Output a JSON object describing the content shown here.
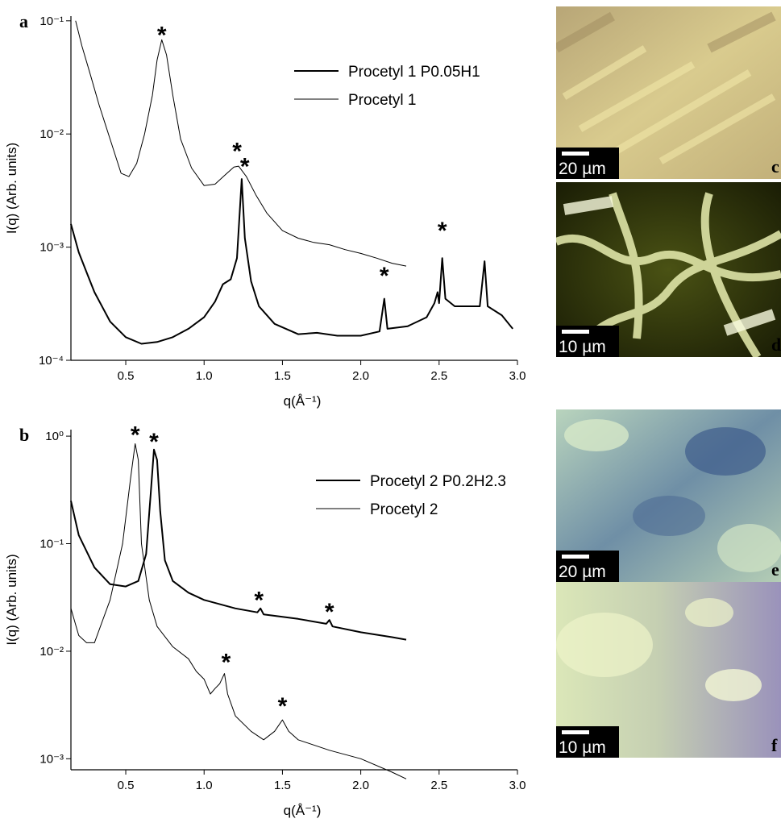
{
  "chart_data": [
    {
      "type": "line",
      "panel_label": "a",
      "xlabel": "q(Å⁻¹)",
      "ylabel": "I(q) (Arb. units)",
      "log_y": true,
      "xlim": [
        0.15,
        3.0
      ],
      "ylim": [
        0.0001,
        0.11
      ],
      "xticks": [
        0.5,
        {
          "value": 1,
          "label": "1.0"
        },
        1.5,
        {
          "value": 2,
          "label": "2.0"
        },
        2.5,
        {
          "value": 3,
          "label": "3.0"
        }
      ],
      "yticks": [
        {
          "value": 0.0001,
          "label": "10⁻⁴"
        },
        {
          "value": 0.001,
          "label": "10⁻³"
        },
        {
          "value": 0.01,
          "label": "10⁻²"
        },
        {
          "value": 0.1,
          "label": "10⁻¹"
        }
      ],
      "series": [
        {
          "name": "Procetyl 1 P0.05H1",
          "color": "#000000",
          "linewidth": 2,
          "x": [
            0.15,
            0.2,
            0.25,
            0.3,
            0.4,
            0.5,
            0.6,
            0.7,
            0.8,
            0.9,
            1.0,
            1.07,
            1.12,
            1.17,
            1.21,
            1.24,
            1.26,
            1.3,
            1.35,
            1.45,
            1.6,
            1.72,
            1.85,
            2.0,
            2.12,
            2.15,
            2.17,
            2.3,
            2.42,
            2.47,
            2.49,
            2.5,
            2.52,
            2.54,
            2.6,
            2.76,
            2.79,
            2.81,
            2.9,
            2.97
          ],
          "values": [
            0.0016,
            0.0009,
            0.0006,
            0.0004,
            0.00022,
            0.00016,
            0.00014,
            0.000145,
            0.00016,
            0.00019,
            0.00024,
            0.00033,
            0.00047,
            0.00052,
            0.0008,
            0.004,
            0.0012,
            0.0005,
            0.0003,
            0.00021,
            0.00017,
            0.000175,
            0.000165,
            0.000165,
            0.00018,
            0.00035,
            0.00019,
            0.0002,
            0.00024,
            0.00032,
            0.0004,
            0.00032,
            0.0008,
            0.00035,
            0.0003,
            0.0003,
            0.00075,
            0.0003,
            0.00025,
            0.00019
          ]
        },
        {
          "name": "Procetyl 1",
          "color": "#000000",
          "linewidth": 1,
          "x": [
            0.18,
            0.22,
            0.27,
            0.33,
            0.4,
            0.47,
            0.52,
            0.57,
            0.62,
            0.67,
            0.7,
            0.73,
            0.76,
            0.8,
            0.85,
            0.92,
            1.0,
            1.07,
            1.13,
            1.19,
            1.22,
            1.27,
            1.33,
            1.4,
            1.5,
            1.6,
            1.7,
            1.8,
            1.9,
            2.0,
            2.1,
            2.2,
            2.29
          ],
          "values": [
            0.1,
            0.06,
            0.035,
            0.018,
            0.009,
            0.0045,
            0.0042,
            0.0055,
            0.01,
            0.022,
            0.045,
            0.068,
            0.05,
            0.022,
            0.009,
            0.005,
            0.0035,
            0.0036,
            0.0043,
            0.0051,
            0.0052,
            0.0042,
            0.0029,
            0.002,
            0.0014,
            0.0012,
            0.0011,
            0.00105,
            0.00095,
            0.00088,
            0.0008,
            0.00072,
            0.00068
          ]
        }
      ],
      "annotations": [
        {
          "text": "*",
          "x": 0.73,
          "y": 0.08
        },
        {
          "text": "*",
          "x": 1.21,
          "y": 0.0075
        },
        {
          "text": "*",
          "x": 1.26,
          "y": 0.0055
        },
        {
          "text": "*",
          "x": 2.15,
          "y": 0.0006
        },
        {
          "text": "*",
          "x": 2.52,
          "y": 0.0015
        }
      ]
    },
    {
      "type": "line",
      "panel_label": "b",
      "xlabel": "q(Å⁻¹)",
      "ylabel": "I(q) (Arb. units)",
      "log_y": true,
      "xlim": [
        0.15,
        3.0
      ],
      "ylim": [
        0.00079,
        1.15
      ],
      "xticks": [
        0.5,
        {
          "value": 1,
          "label": "1.0"
        },
        1.5,
        {
          "value": 2,
          "label": "2.0"
        },
        2.5,
        {
          "value": 3,
          "label": "3.0"
        }
      ],
      "yticks": [
        {
          "value": 0.001,
          "label": "10⁻³"
        },
        {
          "value": 0.01,
          "label": "10⁻²"
        },
        {
          "value": 0.1,
          "label": "10⁻¹"
        },
        {
          "value": 1,
          "label": "10⁰"
        }
      ],
      "series": [
        {
          "name": "Procetyl 2 P0.2H2.3",
          "color": "#000000",
          "linewidth": 2,
          "x": [
            0.15,
            0.2,
            0.3,
            0.4,
            0.5,
            0.58,
            0.63,
            0.66,
            0.68,
            0.7,
            0.72,
            0.75,
            0.8,
            0.9,
            1.0,
            1.2,
            1.34,
            1.36,
            1.38,
            1.6,
            1.78,
            1.8,
            1.82,
            2.0,
            2.2,
            2.29
          ],
          "values": [
            0.25,
            0.12,
            0.06,
            0.042,
            0.04,
            0.045,
            0.08,
            0.3,
            0.75,
            0.6,
            0.2,
            0.07,
            0.045,
            0.035,
            0.03,
            0.025,
            0.023,
            0.025,
            0.022,
            0.02,
            0.018,
            0.0195,
            0.017,
            0.015,
            0.0135,
            0.0128
          ]
        },
        {
          "name": "Procetyl 2",
          "color": "#000000",
          "linewidth": 1,
          "x": [
            0.15,
            0.2,
            0.25,
            0.3,
            0.4,
            0.48,
            0.53,
            0.56,
            0.58,
            0.6,
            0.65,
            0.7,
            0.8,
            0.9,
            0.95,
            1.0,
            1.04,
            1.07,
            1.1,
            1.13,
            1.15,
            1.2,
            1.3,
            1.38,
            1.45,
            1.5,
            1.54,
            1.6,
            1.8,
            2.0,
            2.2,
            2.29
          ],
          "values": [
            0.025,
            0.014,
            0.012,
            0.012,
            0.03,
            0.1,
            0.4,
            0.85,
            0.6,
            0.1,
            0.03,
            0.017,
            0.011,
            0.0085,
            0.0065,
            0.0055,
            0.004,
            0.0045,
            0.005,
            0.0062,
            0.004,
            0.0025,
            0.0018,
            0.0015,
            0.0018,
            0.0023,
            0.0018,
            0.0015,
            0.0012,
            0.001,
            0.00075,
            0.00065
          ]
        }
      ],
      "annotations": [
        {
          "text": "*",
          "x": 0.56,
          "y": 1.1
        },
        {
          "text": "*",
          "x": 0.68,
          "y": 0.95
        },
        {
          "text": "*",
          "x": 1.35,
          "y": 0.032
        },
        {
          "text": "*",
          "x": 1.8,
          "y": 0.025
        },
        {
          "text": "*",
          "x": 1.14,
          "y": 0.0085
        },
        {
          "text": "*",
          "x": 1.5,
          "y": 0.0033
        }
      ]
    }
  ],
  "panels": [
    {
      "label": "c",
      "scale_bar": "20 µm"
    },
    {
      "label": "d",
      "scale_bar": "10 µm"
    },
    {
      "label": "e",
      "scale_bar": "20 µm"
    },
    {
      "label": "f",
      "scale_bar": "10 µm"
    }
  ]
}
